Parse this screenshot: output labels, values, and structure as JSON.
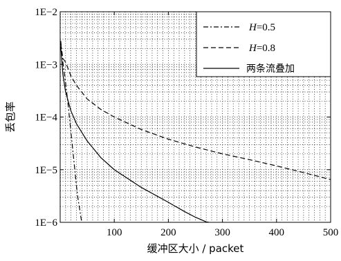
{
  "chart_data": {
    "type": "line",
    "xlabel": "缓冲区大小 / packet",
    "ylabel": "丢包率",
    "xlim": [
      0,
      500
    ],
    "ylim": [
      1e-06,
      0.01
    ],
    "yscale": "log",
    "grid": true,
    "legend_position": "top-right",
    "x_ticks": [
      {
        "value": 100,
        "label": "100"
      },
      {
        "value": 200,
        "label": "200"
      },
      {
        "value": 300,
        "label": "300"
      },
      {
        "value": 400,
        "label": "400"
      },
      {
        "value": 500,
        "label": "500"
      }
    ],
    "y_ticks": [
      {
        "value": 1e-06,
        "label": "1E−6"
      },
      {
        "value": 1e-05,
        "label": "1E−5"
      },
      {
        "value": 0.0001,
        "label": "1E−4"
      },
      {
        "value": 0.001,
        "label": "1E−3"
      },
      {
        "value": 0.01,
        "label": "1E−2"
      }
    ],
    "series": [
      {
        "name_prefix": "H",
        "name_suffix": "=0.5",
        "style": "dashdot",
        "x": [
          1,
          5,
          10,
          15,
          20,
          25,
          30,
          33,
          36,
          38,
          40
        ],
        "y": [
          0.0028,
          0.0011,
          0.00045,
          0.00016,
          5e-05,
          1.6e-05,
          5e-06,
          2.8e-06,
          1.8e-06,
          1.3e-06,
          1e-06
        ]
      },
      {
        "name_prefix": "H",
        "name_suffix": "=0.8",
        "style": "dashed",
        "x": [
          1,
          5,
          10,
          20,
          30,
          50,
          75,
          100,
          150,
          200,
          250,
          300,
          350,
          400,
          450,
          500
        ],
        "y": [
          0.0025,
          0.0013,
          0.0011,
          0.0006,
          0.0004,
          0.00022,
          0.00014,
          0.0001,
          5.8e-05,
          3.8e-05,
          2.7e-05,
          2e-05,
          1.55e-05,
          1.18e-05,
          8.8e-06,
          6.5e-06
        ]
      },
      {
        "name": "两条流叠加",
        "style": "solid",
        "x": [
          1,
          5,
          10,
          20,
          30,
          50,
          75,
          100,
          150,
          200,
          230,
          250,
          270,
          275
        ],
        "y": [
          0.0022,
          0.00065,
          0.0003,
          0.00013,
          7.5e-05,
          3.5e-05,
          1.7e-05,
          1e-05,
          4.6e-06,
          2.4e-06,
          1.6e-06,
          1.25e-06,
          1.02e-06,
          1e-06
        ]
      }
    ]
  }
}
